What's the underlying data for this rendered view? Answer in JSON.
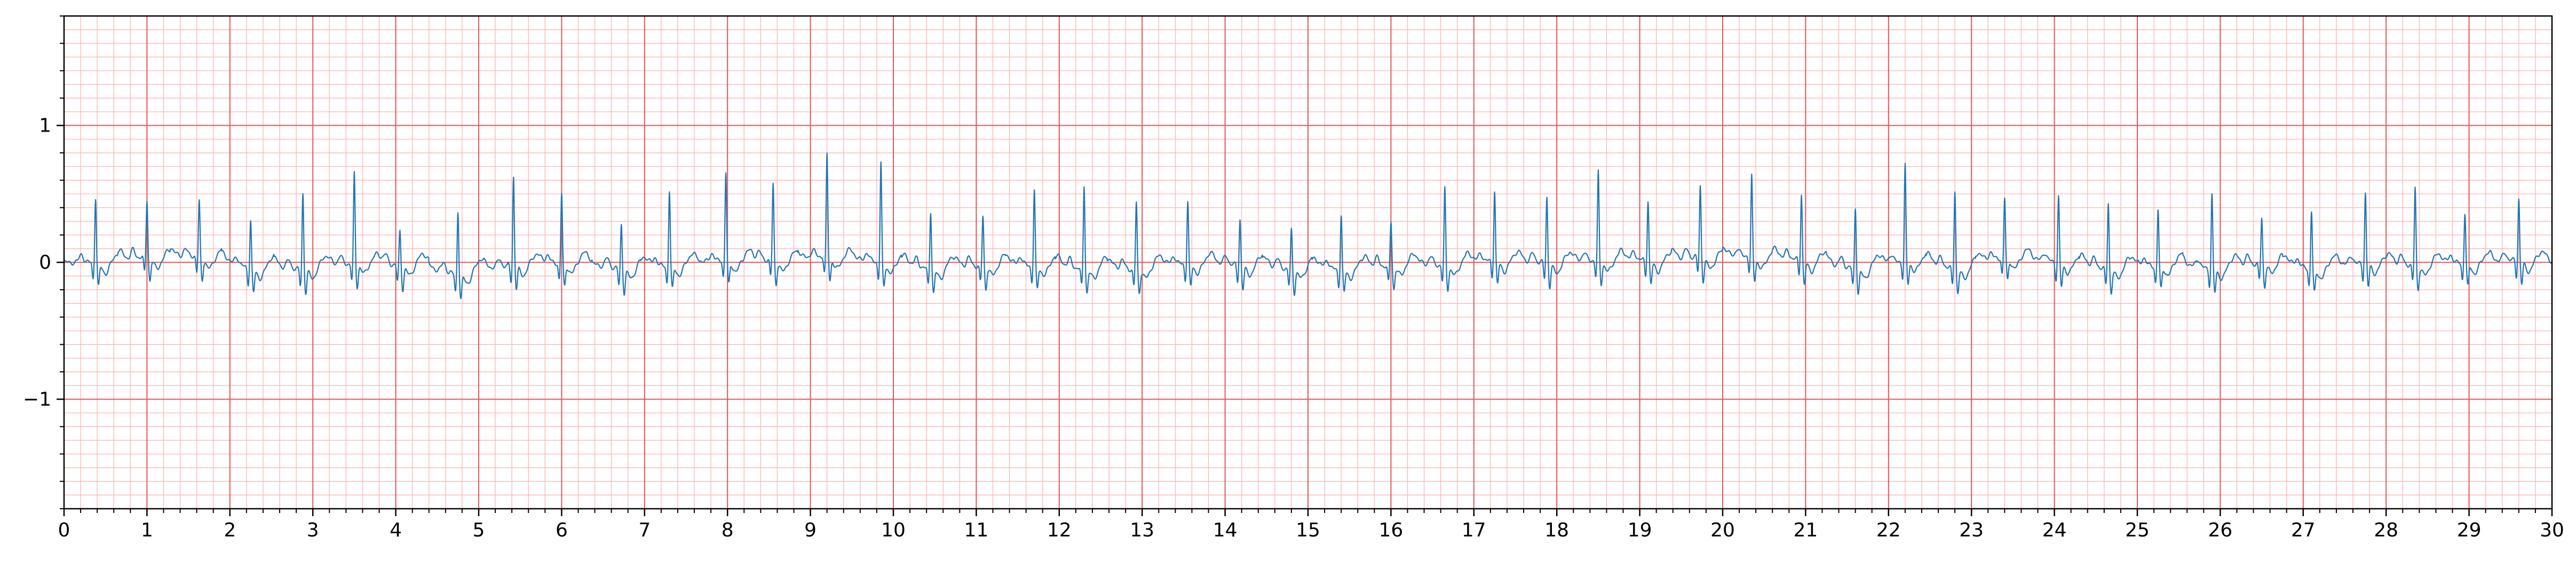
{
  "chart_data": {
    "type": "line",
    "title": "",
    "xlabel": "",
    "ylabel": "",
    "xlim": [
      0,
      30
    ],
    "ylim": [
      -1.8,
      1.8
    ],
    "x_ticks": [
      0,
      1,
      2,
      3,
      4,
      5,
      6,
      7,
      8,
      9,
      10,
      11,
      12,
      13,
      14,
      15,
      16,
      17,
      18,
      19,
      20,
      21,
      22,
      23,
      24,
      25,
      26,
      27,
      28,
      29,
      30
    ],
    "x_tick_labels": [
      "0",
      "1",
      "2",
      "3",
      "4",
      "5",
      "6",
      "7",
      "8",
      "9",
      "10",
      "11",
      "12",
      "13",
      "14",
      "15",
      "16",
      "17",
      "18",
      "19",
      "20",
      "21",
      "22",
      "23",
      "24",
      "25",
      "26",
      "27",
      "28",
      "29",
      "30"
    ],
    "y_ticks": [
      1,
      0,
      -1
    ],
    "y_tick_labels": [
      "1",
      "0",
      "−1"
    ],
    "grid": true,
    "grid_major": {
      "x_step": 1,
      "y_step": 1,
      "color": "#e45756"
    },
    "grid_minor": {
      "x_step": 0.2,
      "y_step": 0.1,
      "color": "#ffb3b3"
    },
    "series": [
      {
        "color": "#1f77b4",
        "sample_rate_hz": 300,
        "beat_times": [
          0.38,
          1.0,
          1.63,
          2.25,
          2.88,
          3.5,
          4.05,
          4.75,
          5.42,
          6.0,
          6.72,
          7.3,
          7.98,
          8.55,
          9.2,
          9.85,
          10.45,
          11.08,
          11.7,
          12.3,
          12.93,
          13.55,
          14.18,
          14.8,
          15.4,
          16.0,
          16.65,
          17.25,
          17.88,
          18.5,
          19.1,
          19.73,
          20.35,
          20.95,
          21.6,
          22.2,
          22.8,
          23.4,
          24.05,
          24.65,
          25.25,
          25.9,
          26.5,
          27.1,
          27.75,
          28.35,
          28.95,
          29.6
        ],
        "r_amplitudes": [
          0.48,
          0.41,
          0.4,
          0.36,
          0.56,
          0.65,
          0.25,
          0.48,
          0.65,
          0.51,
          0.33,
          0.56,
          0.64,
          0.55,
          0.74,
          0.73,
          0.43,
          0.36,
          0.55,
          0.62,
          0.49,
          0.45,
          0.34,
          0.29,
          0.41,
          0.33,
          0.56,
          0.51,
          0.48,
          0.64,
          0.44,
          0.51,
          0.58,
          0.48,
          0.45,
          0.7,
          0.58,
          0.43,
          0.48,
          0.49,
          0.41,
          0.55,
          0.33,
          0.43,
          0.51,
          0.57,
          0.37,
          0.45
        ],
        "baseline_offsets": [
          0.0,
          0.05,
          0.05,
          -0.05,
          -0.05,
          0.0,
          -0.02,
          -0.1,
          -0.02,
          0.0,
          -0.05,
          -0.02,
          0.02,
          0.02,
          0.05,
          0.0,
          -0.05,
          -0.02,
          -0.02,
          -0.05,
          -0.05,
          0.0,
          -0.02,
          -0.05,
          -0.05,
          -0.02,
          -0.02,
          0.02,
          0.0,
          0.02,
          0.02,
          0.05,
          0.05,
          0.02,
          -0.05,
          0.02,
          -0.05,
          0.05,
          0.0,
          -0.05,
          -0.02,
          -0.05,
          0.0,
          -0.05,
          0.0,
          -0.02,
          0.0,
          0.02
        ]
      }
    ]
  }
}
